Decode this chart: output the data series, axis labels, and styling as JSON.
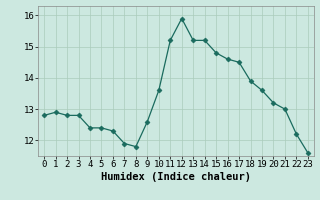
{
  "x": [
    0,
    1,
    2,
    3,
    4,
    5,
    6,
    7,
    8,
    9,
    10,
    11,
    12,
    13,
    14,
    15,
    16,
    17,
    18,
    19,
    20,
    21,
    22,
    23
  ],
  "y": [
    12.8,
    12.9,
    12.8,
    12.8,
    12.4,
    12.4,
    12.3,
    11.9,
    11.8,
    12.6,
    13.6,
    15.2,
    15.9,
    15.2,
    15.2,
    14.8,
    14.6,
    14.5,
    13.9,
    13.6,
    13.2,
    13.0,
    12.2,
    11.6
  ],
  "line_color": "#1a6b5e",
  "marker": "D",
  "marker_size": 2.5,
  "bg_color": "#cce8e0",
  "grid_color": "#aaccbb",
  "xlabel": "Humidex (Indice chaleur)",
  "ylim": [
    11.5,
    16.3
  ],
  "yticks": [
    12,
    13,
    14,
    15,
    16
  ],
  "xticks": [
    0,
    1,
    2,
    3,
    4,
    5,
    6,
    7,
    8,
    9,
    10,
    11,
    12,
    13,
    14,
    15,
    16,
    17,
    18,
    19,
    20,
    21,
    22,
    23
  ],
  "xlabel_fontsize": 7.5,
  "tick_fontsize": 6.5
}
